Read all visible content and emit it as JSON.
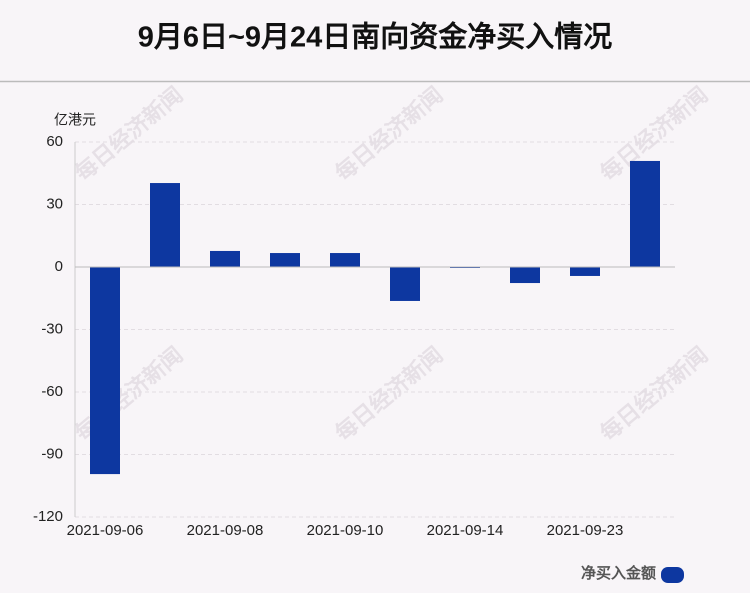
{
  "chart_data": {
    "type": "bar",
    "title": "9月6日~9月24日南向资金净买入情况",
    "y_axis_label": "亿港元",
    "watermark": "每日经济新闻",
    "categories": [
      "2021-09-06",
      null,
      "2021-09-08",
      null,
      "2021-09-10",
      null,
      "2021-09-14",
      null,
      "2021-09-23",
      null
    ],
    "series": [
      {
        "name": "净买入金额",
        "color": "#0d37a0",
        "values": [
          -99.4,
          40.3,
          7.7,
          6.7,
          6.7,
          -16.3,
          -0.3,
          -7.7,
          -4.3,
          50.9
        ]
      }
    ],
    "ylim": [
      -120,
      60
    ],
    "yticks": [
      60,
      30,
      0,
      -30,
      -60,
      -90,
      -120
    ],
    "grid": true
  }
}
